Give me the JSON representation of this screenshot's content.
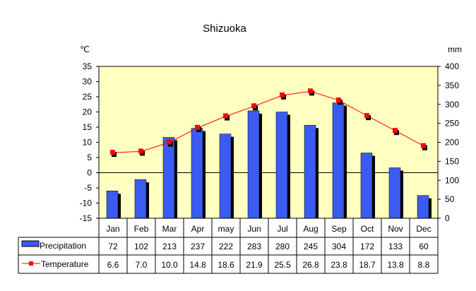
{
  "chart_data": {
    "type": "bar",
    "title": "Shizuoka",
    "left_unit": "℃",
    "right_unit": "mm",
    "categories": [
      "Jan",
      "Feb",
      "Mar",
      "Apr",
      "may",
      "Jun",
      "Jul",
      "Aug",
      "Sep",
      "Oct",
      "Nov",
      "Dec"
    ],
    "left_axis": {
      "min": -15,
      "max": 35,
      "step": 5,
      "ticks": [
        "35",
        "30",
        "25",
        "20",
        "15",
        "10",
        "5",
        "0",
        "-5",
        "-10",
        "-15"
      ]
    },
    "right_axis": {
      "min": 0,
      "max": 400,
      "step": 50,
      "ticks": [
        "400",
        "350",
        "300",
        "250",
        "200",
        "150",
        "100",
        "50",
        "0"
      ]
    },
    "series": [
      {
        "name": "Precipitation",
        "kind": "bar",
        "axis": "right",
        "color": "#3b5cf0",
        "values": [
          72,
          102,
          213,
          237,
          222,
          283,
          280,
          245,
          304,
          172,
          133,
          60
        ],
        "labels": [
          "72",
          "102",
          "213",
          "237",
          "222",
          "283",
          "280",
          "245",
          "304",
          "172",
          "133",
          "60"
        ]
      },
      {
        "name": "Temperature",
        "kind": "line",
        "axis": "left",
        "color": "#ff0000",
        "values": [
          6.6,
          7.0,
          10.0,
          14.8,
          18.6,
          21.9,
          25.5,
          26.8,
          23.8,
          18.7,
          13.8,
          8.8
        ],
        "labels": [
          "6.6",
          "7.0",
          "10.0",
          "14.8",
          "18.6",
          "21.9",
          "25.5",
          "26.8",
          "23.8",
          "18.7",
          "13.8",
          "8.8"
        ]
      }
    ],
    "grid": false,
    "plot_background": "#ffffc0",
    "legend": "table-below"
  }
}
